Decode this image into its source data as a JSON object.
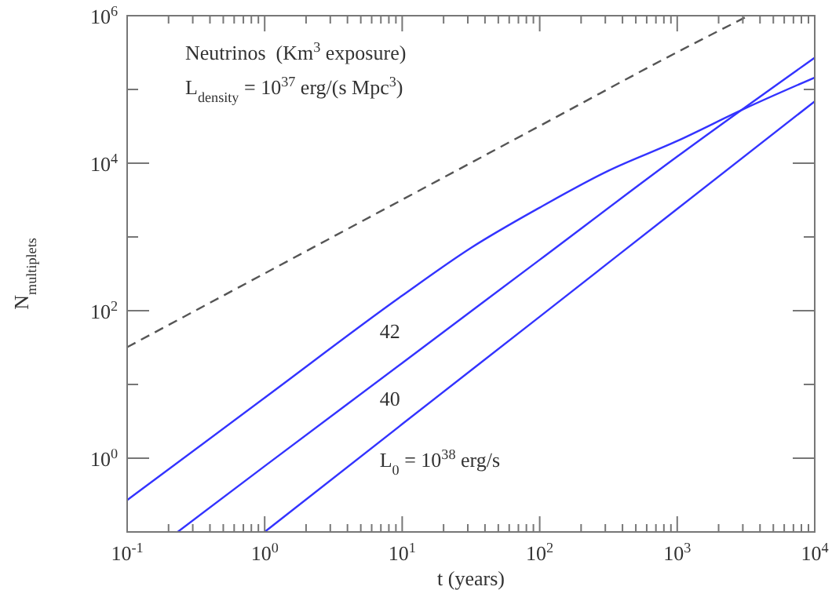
{
  "chart_data": {
    "type": "line",
    "xlabel": "t (years)",
    "ylabel": "N$_{multiplets}$",
    "log": "xy",
    "xlim": [
      0.1,
      10000
    ],
    "ylim": [
      0.1,
      1000000
    ],
    "xticks": [
      {
        "value": 0.1,
        "label": "10$^{-1}$"
      },
      {
        "value": 0.2,
        "label": null
      },
      {
        "value": 0.3,
        "label": null
      },
      {
        "value": 0.4,
        "label": null
      },
      {
        "value": 0.5,
        "label": null
      },
      {
        "value": 0.6,
        "label": null
      },
      {
        "value": 0.7,
        "label": null
      },
      {
        "value": 0.8,
        "label": null
      },
      {
        "value": 0.9,
        "label": null
      },
      {
        "value": 1,
        "label": "10$^{0}$"
      },
      {
        "value": 2,
        "label": null
      },
      {
        "value": 3,
        "label": null
      },
      {
        "value": 4,
        "label": null
      },
      {
        "value": 5,
        "label": null
      },
      {
        "value": 6,
        "label": null
      },
      {
        "value": 7,
        "label": null
      },
      {
        "value": 8,
        "label": null
      },
      {
        "value": 9,
        "label": null
      },
      {
        "value": 10,
        "label": "10$^{1}$"
      },
      {
        "value": 20,
        "label": null
      },
      {
        "value": 30,
        "label": null
      },
      {
        "value": 40,
        "label": null
      },
      {
        "value": 50,
        "label": null
      },
      {
        "value": 60,
        "label": null
      },
      {
        "value": 70,
        "label": null
      },
      {
        "value": 80,
        "label": null
      },
      {
        "value": 90,
        "label": null
      },
      {
        "value": 100,
        "label": "10$^{2}$"
      },
      {
        "value": 200,
        "label": null
      },
      {
        "value": 300,
        "label": null
      },
      {
        "value": 400,
        "label": null
      },
      {
        "value": 500,
        "label": null
      },
      {
        "value": 600,
        "label": null
      },
      {
        "value": 700,
        "label": null
      },
      {
        "value": 800,
        "label": null
      },
      {
        "value": 900,
        "label": null
      },
      {
        "value": 1000,
        "label": "10$^{3}$"
      },
      {
        "value": 2000,
        "label": null
      },
      {
        "value": 3000,
        "label": null
      },
      {
        "value": 4000,
        "label": null
      },
      {
        "value": 5000,
        "label": null
      },
      {
        "value": 6000,
        "label": null
      },
      {
        "value": 7000,
        "label": null
      },
      {
        "value": 8000,
        "label": null
      },
      {
        "value": 9000,
        "label": null
      },
      {
        "value": 10000,
        "label": "10$^{4}$"
      }
    ],
    "yticks": [
      {
        "value": 0.1,
        "label": null
      },
      {
        "value": 1,
        "label": "10$^{0}$"
      },
      {
        "value": 10,
        "label": null
      },
      {
        "value": 100,
        "label": "10$^{2}$"
      },
      {
        "value": 1000,
        "label": null
      },
      {
        "value": 10000,
        "label": "10$^{4}$"
      },
      {
        "value": 100000,
        "label": null
      },
      {
        "value": 1000000,
        "label": "10$^{6}$"
      }
    ],
    "grid": false,
    "series": [
      {
        "name": "42",
        "color": "#3333ff",
        "line_style": "solid",
        "x": [
          0.1,
          1,
          10,
          31.6,
          100,
          316,
          1000,
          3160,
          10000
        ],
        "values": [
          0.27,
          6.6,
          160,
          710,
          2500,
          7900,
          20000,
          56000,
          145000
        ]
      },
      {
        "name": "40",
        "color": "#3333ff",
        "line_style": "solid",
        "x": [
          0.233,
          1,
          10,
          100,
          1000,
          10000
        ],
        "values": [
          0.1,
          0.78,
          19.5,
          490,
          12300,
          270000
        ]
      },
      {
        "name": "L$_{0}$ = 10$^{38}$ erg/s",
        "color": "#3333ff",
        "line_style": "solid",
        "x": [
          1,
          10,
          100,
          1000,
          10000
        ],
        "values": [
          0.1,
          2.9,
          83,
          2400,
          69000
        ]
      },
      {
        "color": "#555555",
        "line_style": "dashed",
        "x": [
          0.1,
          1,
          10,
          100,
          1000,
          3300
        ],
        "values": [
          32,
          320,
          3200,
          32000,
          320000,
          1000000
        ]
      }
    ],
    "annotations": [
      "Neutrinos  (Km$^{3}$ exposure)",
      "L$_{density}$ = 10$^{37}$ erg/(s Mpc$^{3}$)"
    ]
  }
}
